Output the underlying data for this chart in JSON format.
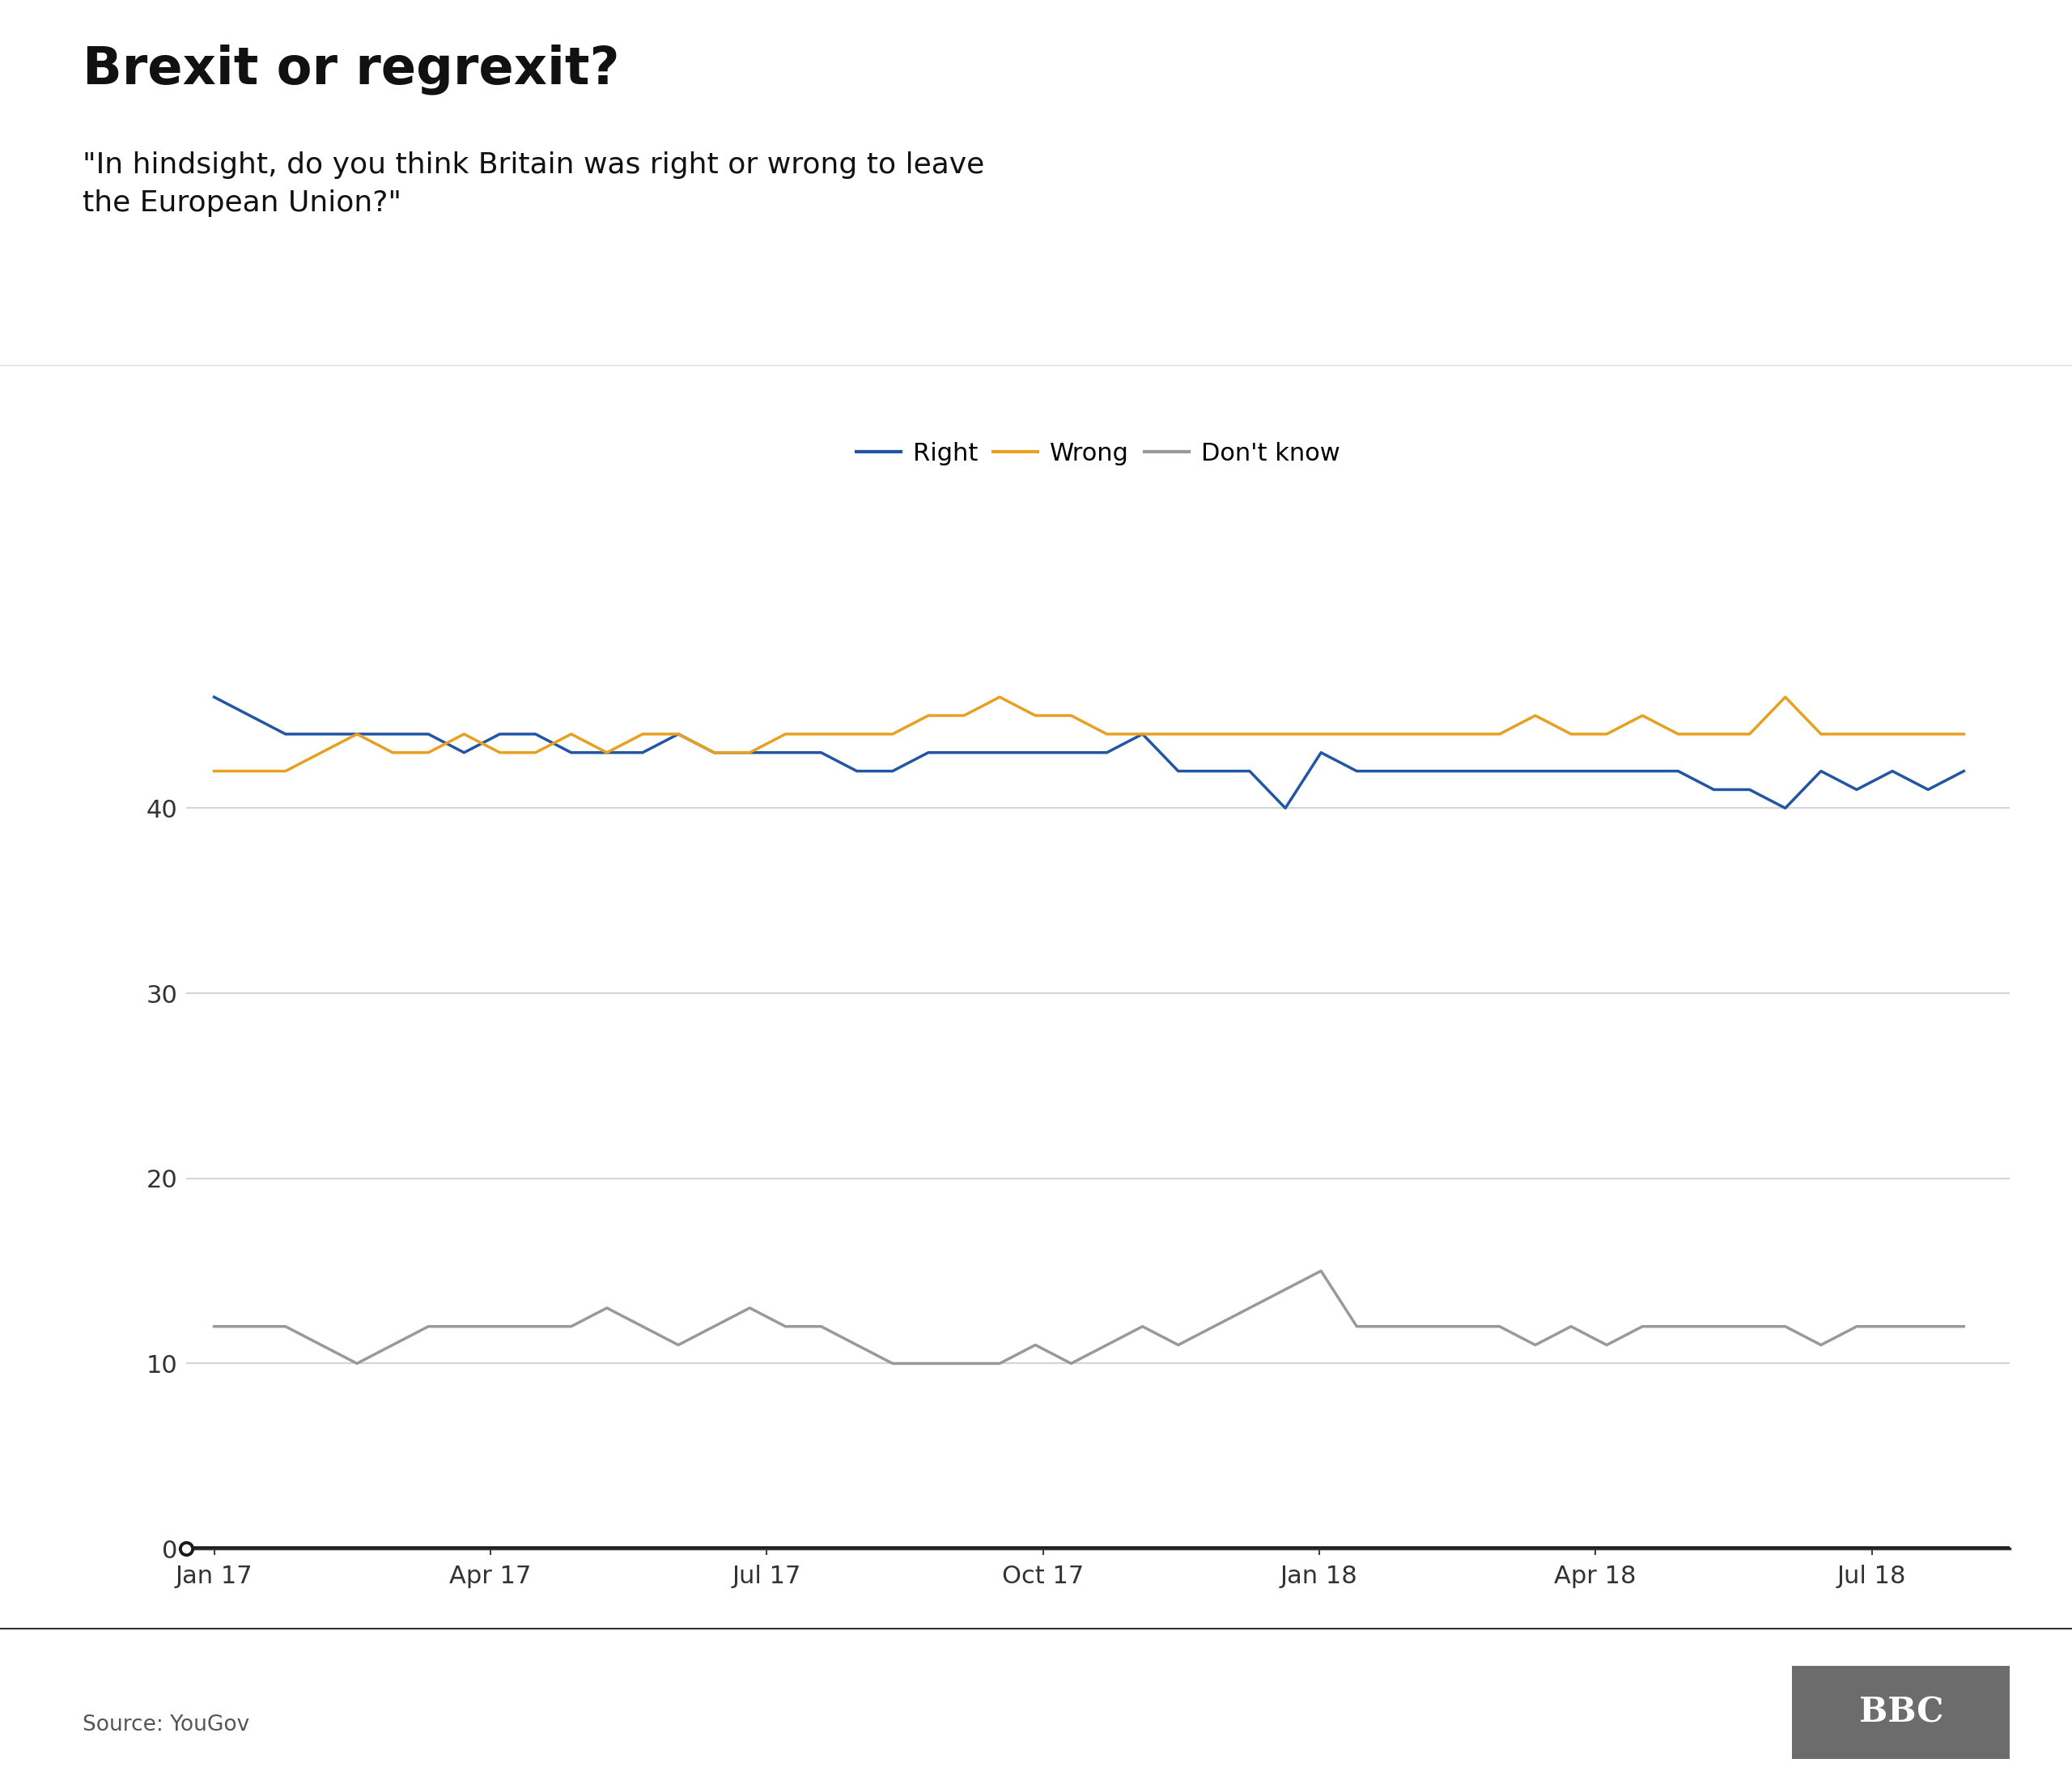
{
  "title": "Brexit or regrexit?",
  "subtitle": "\"In hindsight, do you think Britain was right or wrong to leave\nthe European Union?\"",
  "source": "Source: YouGov",
  "legend_labels": [
    "Right",
    "Wrong",
    "Don't know"
  ],
  "line_colors": [
    "#2255a4",
    "#e8a020",
    "#999999"
  ],
  "line_width": 2.5,
  "ylim": [
    0,
    50
  ],
  "yticks": [
    0,
    10,
    20,
    30,
    40
  ],
  "background_color": "#ffffff",
  "grid_color": "#cccccc",
  "x_labels": [
    "Jan 17",
    "Apr 17",
    "Jul 17",
    "Oct 17",
    "Jan 18",
    "Apr 18",
    "Jul 18"
  ],
  "x_tick_positions": [
    0,
    3,
    6,
    9,
    12,
    15,
    18
  ],
  "right_values": [
    46,
    45,
    44,
    44,
    44,
    44,
    44,
    43,
    44,
    44,
    43,
    43,
    43,
    44,
    43,
    43,
    43,
    43,
    42,
    42,
    43,
    43,
    43,
    43,
    43,
    43,
    44,
    42,
    42,
    42,
    40,
    43,
    42,
    42,
    42,
    42,
    42,
    42,
    42,
    42,
    42,
    42,
    41,
    41,
    40,
    42,
    41,
    42,
    41,
    42
  ],
  "wrong_values": [
    42,
    42,
    42,
    43,
    44,
    43,
    43,
    44,
    43,
    43,
    44,
    43,
    44,
    44,
    43,
    43,
    44,
    44,
    44,
    44,
    45,
    45,
    46,
    45,
    45,
    44,
    44,
    44,
    44,
    44,
    44,
    44,
    44,
    44,
    44,
    44,
    44,
    45,
    44,
    44,
    45,
    44,
    44,
    44,
    46,
    44,
    44,
    44,
    44,
    44
  ],
  "dont_know_values": [
    12,
    12,
    12,
    11,
    10,
    11,
    12,
    12,
    12,
    12,
    12,
    13,
    12,
    11,
    12,
    13,
    12,
    12,
    11,
    10,
    10,
    10,
    10,
    11,
    10,
    11,
    12,
    11,
    12,
    13,
    14,
    15,
    12,
    12,
    12,
    12,
    12,
    11,
    12,
    11,
    12,
    12,
    12,
    12,
    12,
    11,
    12,
    12,
    12,
    12
  ],
  "title_fontsize": 46,
  "subtitle_fontsize": 26,
  "tick_fontsize": 22,
  "legend_fontsize": 22,
  "source_fontsize": 19
}
